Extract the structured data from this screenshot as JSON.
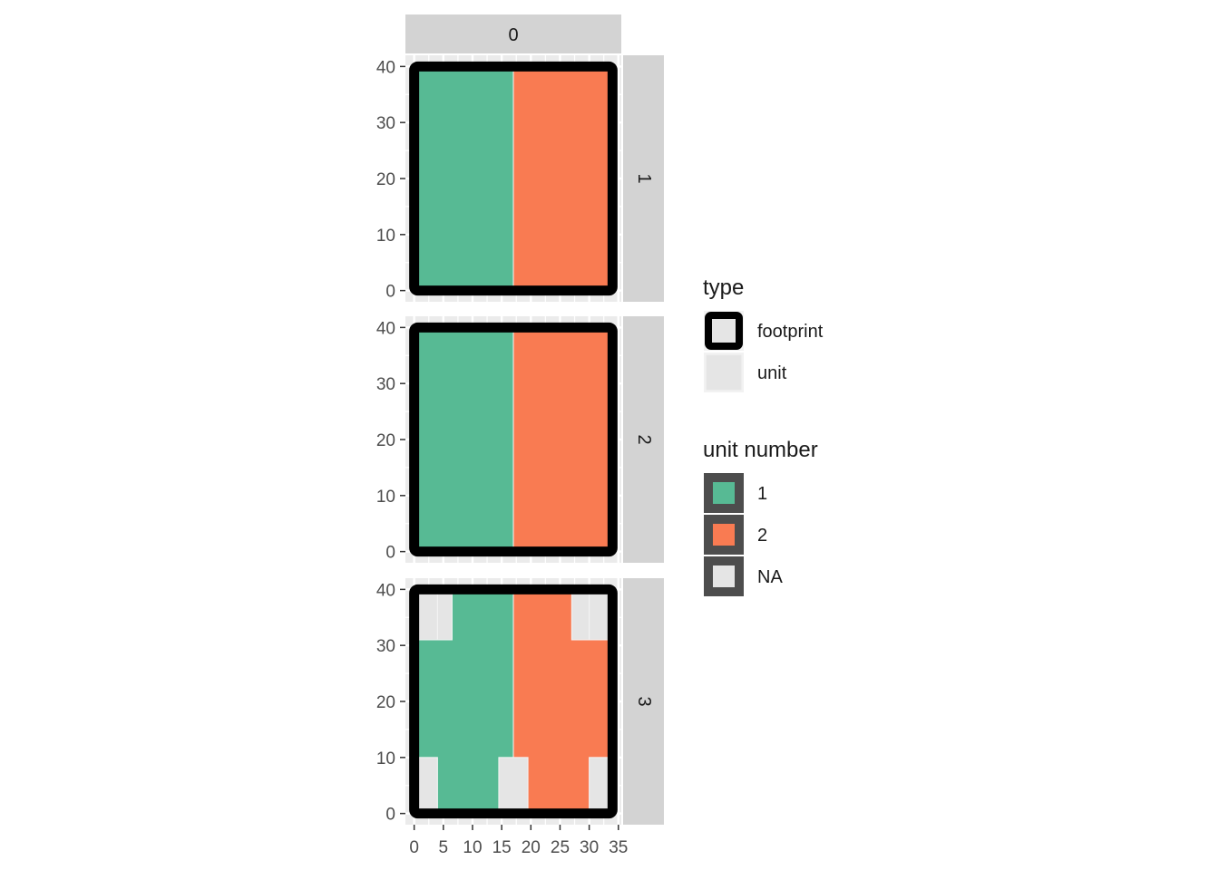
{
  "chart_data": {
    "type": "faceted-tile-map",
    "column_strip": "0",
    "x_ticks": [
      0,
      5,
      10,
      15,
      20,
      25,
      30,
      35
    ],
    "y_ticks": [
      0,
      10,
      20,
      30,
      40
    ],
    "xlim": [
      -1.5,
      35.5
    ],
    "ylim": [
      -2,
      42
    ],
    "footprint": {
      "x": [
        0,
        34
      ],
      "y": [
        0,
        40
      ]
    },
    "colors": {
      "unit_1": "#57ba94",
      "unit_2": "#f97b52",
      "unit_na": "#e5e5e5",
      "strip": "#d3d3d3",
      "panel_bg": "#ebebeb",
      "grid": "#ffffff",
      "footprint_border": "#000000",
      "legend_key_border": "#4d4d4d"
    },
    "facets": [
      {
        "strip": "1",
        "tiles": [
          {
            "unit": "1",
            "x0": 0,
            "x1": 17,
            "y0": 0,
            "y1": 40
          },
          {
            "unit": "2",
            "x0": 17,
            "x1": 34,
            "y0": 0,
            "y1": 40
          }
        ]
      },
      {
        "strip": "2",
        "tiles": [
          {
            "unit": "1",
            "x0": 0,
            "x1": 17,
            "y0": 0,
            "y1": 40
          },
          {
            "unit": "2",
            "x0": 17,
            "x1": 34,
            "y0": 0,
            "y1": 40
          }
        ]
      },
      {
        "strip": "3",
        "tiles": [
          {
            "unit": "1",
            "x0": 0,
            "x1": 17,
            "y0": 0,
            "y1": 40
          },
          {
            "unit": "2",
            "x0": 17,
            "x1": 34,
            "y0": 0,
            "y1": 40
          },
          {
            "unit": "NA",
            "x0": 0,
            "x1": 4,
            "y0": 31,
            "y1": 40
          },
          {
            "unit": "NA",
            "x0": 4,
            "x1": 6.5,
            "y0": 31,
            "y1": 40
          },
          {
            "unit": "NA",
            "x0": 27,
            "x1": 30,
            "y0": 31,
            "y1": 40
          },
          {
            "unit": "NA",
            "x0": 30,
            "x1": 34,
            "y0": 31,
            "y1": 40
          },
          {
            "unit": "NA",
            "x0": 0,
            "x1": 4,
            "y0": 0,
            "y1": 10
          },
          {
            "unit": "NA",
            "x0": 14.5,
            "x1": 19.5,
            "y0": 0,
            "y1": 10
          },
          {
            "unit": "NA",
            "x0": 30,
            "x1": 34,
            "y0": 0,
            "y1": 10
          }
        ]
      }
    ],
    "legends": [
      {
        "title": "type",
        "items": [
          {
            "label": "footprint",
            "key": "footprint"
          },
          {
            "label": "unit",
            "key": "unit"
          }
        ]
      },
      {
        "title": "unit number",
        "items": [
          {
            "label": "1",
            "key": "1"
          },
          {
            "label": "2",
            "key": "2"
          },
          {
            "label": "NA",
            "key": "NA"
          }
        ]
      }
    ]
  }
}
